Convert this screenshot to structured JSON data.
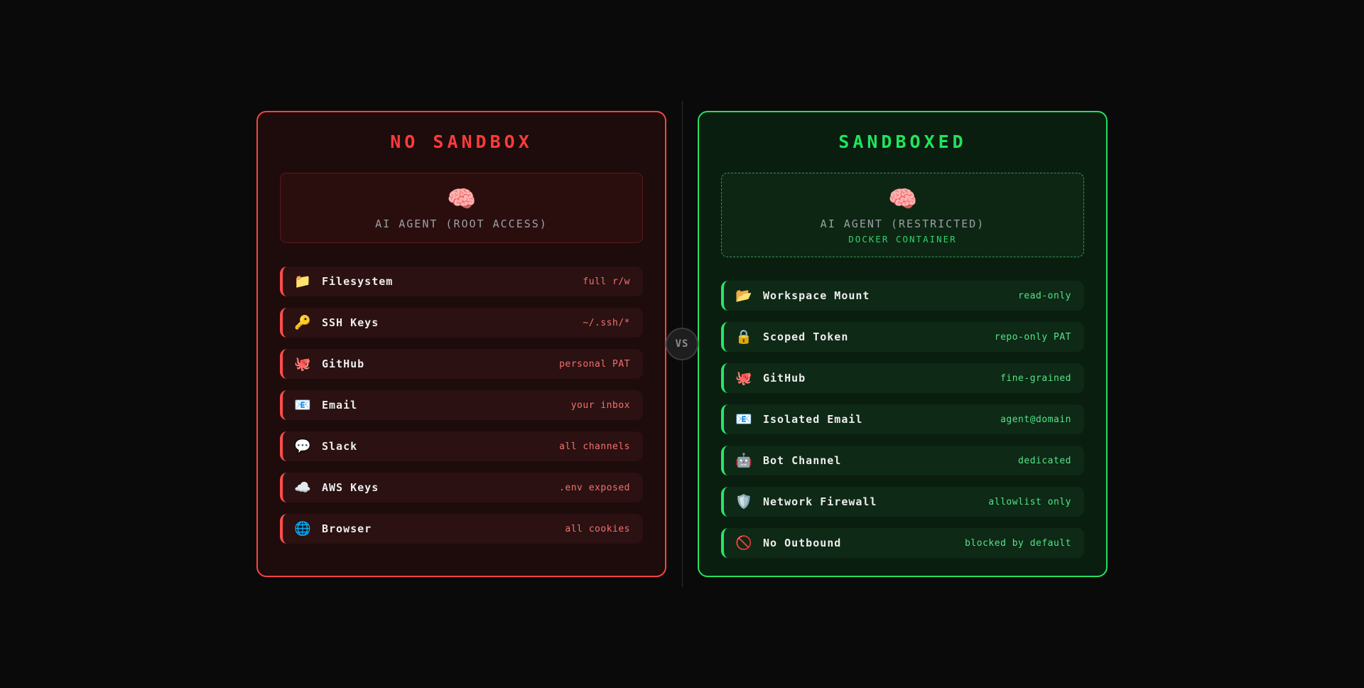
{
  "page": {
    "background": "#0a0a0a"
  },
  "divider": {
    "vs_label": "VS"
  },
  "colors": {
    "red_border": "#f94343",
    "red_title": "#fb3b3b",
    "red_panel_bg": "#1e0b0b",
    "red_row_bg": "#2b1111",
    "red_row_accent": "#ff4d4d",
    "red_value_text": "#f27070",
    "green_border": "#23e05f",
    "green_title": "#1fe55c",
    "green_panel_bg": "#0a1e10",
    "green_row_bg": "#0e2916",
    "green_row_accent": "#27e667",
    "green_value_text": "#53e386",
    "docker_sub_text": "#2fd36a",
    "agent_label_text": "#9aa0a6",
    "row_label_text": "#ededed",
    "vs_text": "#8e8e8e"
  },
  "panels": {
    "left": {
      "title": "NO SANDBOX",
      "agent": {
        "icon": "brain-icon",
        "glyph": "🧠",
        "label": "AI AGENT (ROOT ACCESS)"
      },
      "rows": [
        {
          "icon": "folder-icon",
          "glyph": "📁",
          "label": "Filesystem",
          "value": "full r/w"
        },
        {
          "icon": "key-icon",
          "glyph": "🔑",
          "label": "SSH Keys",
          "value": "~/.ssh/*"
        },
        {
          "icon": "octopus-icon",
          "glyph": "🐙",
          "label": "GitHub",
          "value": "personal PAT"
        },
        {
          "icon": "email-icon",
          "glyph": "📧",
          "label": "Email",
          "value": "your inbox"
        },
        {
          "icon": "speech-balloon-icon",
          "glyph": "💬",
          "label": "Slack",
          "value": "all channels"
        },
        {
          "icon": "cloud-icon",
          "glyph": "☁️",
          "label": "AWS Keys",
          "value": ".env exposed"
        },
        {
          "icon": "globe-icon",
          "glyph": "🌐",
          "label": "Browser",
          "value": "all cookies"
        }
      ]
    },
    "right": {
      "title": "SANDBOXED",
      "agent": {
        "icon": "brain-icon",
        "glyph": "🧠",
        "label": "AI AGENT (RESTRICTED)",
        "sublabel": "DOCKER CONTAINER"
      },
      "rows": [
        {
          "icon": "open-folder-icon",
          "glyph": "📂",
          "label": "Workspace Mount",
          "value": "read-only"
        },
        {
          "icon": "lock-icon",
          "glyph": "🔒",
          "label": "Scoped Token",
          "value": "repo-only PAT"
        },
        {
          "icon": "octopus-icon",
          "glyph": "🐙",
          "label": "GitHub",
          "value": "fine-grained"
        },
        {
          "icon": "email-icon",
          "glyph": "📧",
          "label": "Isolated Email",
          "value": "agent@domain"
        },
        {
          "icon": "robot-icon",
          "glyph": "🤖",
          "label": "Bot Channel",
          "value": "dedicated"
        },
        {
          "icon": "shield-icon",
          "glyph": "🛡️",
          "label": "Network Firewall",
          "value": "allowlist only"
        },
        {
          "icon": "prohibited-icon",
          "glyph": "🚫",
          "label": "No Outbound",
          "value": "blocked by default"
        }
      ]
    }
  }
}
